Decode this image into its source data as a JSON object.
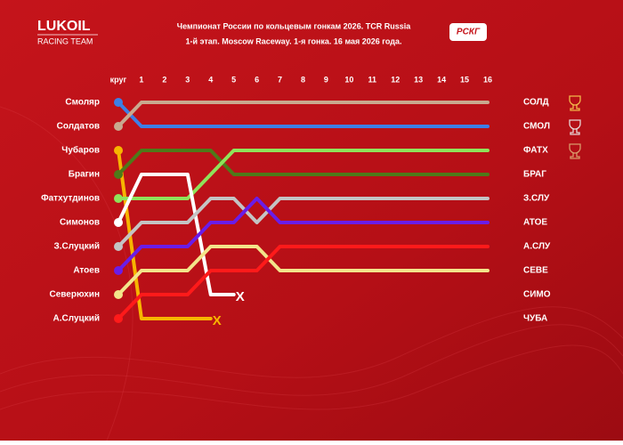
{
  "logos": {
    "brand": "LUKOIL",
    "team": "RACING TEAM",
    "series_logo": "РСКГ"
  },
  "chart_data": {
    "type": "line",
    "title": "Чемпионат России по кольцевым гонкам 2026. TCR Russia",
    "subtitle": "1-й этап. Moscow Raceway. 1-я гонка. 16 мая 2026 года.",
    "x": [
      0,
      1,
      2,
      3,
      4,
      5,
      6,
      7,
      8,
      9,
      10,
      11,
      12,
      13,
      14,
      15,
      16
    ],
    "xlim": [
      0,
      16
    ],
    "xticks": [
      {
        "value": 0,
        "label": "круг"
      },
      1,
      2,
      3,
      4,
      5,
      6,
      7,
      8,
      9,
      10,
      11,
      12,
      13,
      14,
      15,
      16
    ],
    "ylim": [
      10,
      1
    ],
    "series": [
      {
        "name": "Смоляр",
        "color": "#3d7fe6",
        "values": [
          1,
          2,
          2,
          2,
          2,
          2,
          2,
          2,
          2,
          2,
          2,
          2,
          2,
          2,
          2,
          2,
          2
        ]
      },
      {
        "name": "Солдатов",
        "color": "#c9a98f",
        "values": [
          2,
          1,
          1,
          1,
          1,
          1,
          1,
          1,
          1,
          1,
          1,
          1,
          1,
          1,
          1,
          1,
          1
        ]
      },
      {
        "name": "Чубаров",
        "color": "#f7b500",
        "values": [
          3,
          10,
          10,
          10,
          10,
          null,
          null,
          null,
          null,
          null,
          null,
          null,
          null,
          null,
          null,
          null,
          null
        ],
        "end_label": "X"
      },
      {
        "name": "Брагин",
        "color": "#4e7a19",
        "values": [
          4,
          3,
          3,
          3,
          3,
          4,
          4,
          4,
          4,
          4,
          4,
          4,
          4,
          4,
          4,
          4,
          4
        ]
      },
      {
        "name": "Фатхутдинов",
        "color": "#8fe35a",
        "values": [
          5,
          5,
          5,
          5,
          4,
          3,
          3,
          3,
          3,
          3,
          3,
          3,
          3,
          3,
          3,
          3,
          3
        ]
      },
      {
        "name": "Симонов",
        "color": "#ffffff",
        "values": [
          6,
          4,
          4,
          4,
          9,
          9,
          null,
          null,
          null,
          null,
          null,
          null,
          null,
          null,
          null,
          null,
          null
        ],
        "end_label": "X"
      },
      {
        "name": "З.Слуцкий",
        "color": "#c4c4c4",
        "values": [
          7,
          6,
          6,
          6,
          5,
          5,
          6,
          5,
          5,
          5,
          5,
          5,
          5,
          5,
          5,
          5,
          5
        ]
      },
      {
        "name": "Атоев",
        "color": "#6a1de8",
        "values": [
          8,
          7,
          7,
          7,
          6,
          6,
          5,
          6,
          6,
          6,
          6,
          6,
          6,
          6,
          6,
          6,
          6
        ]
      },
      {
        "name": "Северюхин",
        "color": "#f3e48a",
        "values": [
          9,
          8,
          8,
          8,
          7,
          7,
          7,
          8,
          8,
          8,
          8,
          8,
          8,
          8,
          8,
          8,
          8
        ]
      },
      {
        "name": "А.Слуцкий",
        "color": "#ff1a1a",
        "values": [
          10,
          9,
          9,
          9,
          8,
          8,
          8,
          7,
          7,
          7,
          7,
          7,
          7,
          7,
          7,
          7,
          7
        ]
      }
    ],
    "finish_labels": [
      "СОЛД",
      "СМОЛ",
      "ФАТХ",
      "БРАГ",
      "З.СЛУ",
      "АТОЕ",
      "А.СЛУ",
      "СЕВЕ",
      "СИМО",
      "ЧУБА"
    ]
  }
}
